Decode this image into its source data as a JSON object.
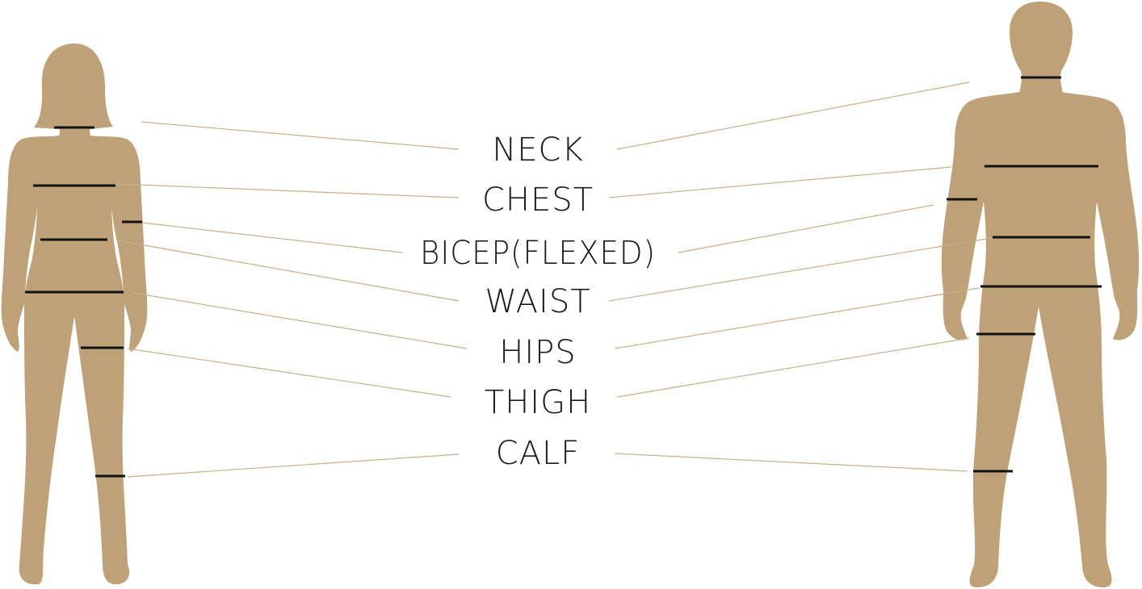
{
  "colors": {
    "body": "#BFA177",
    "measure_mark": "#111111",
    "leader_line": "#C9AE86",
    "text": "#1a1a1a"
  },
  "labels": {
    "neck": "NECK",
    "chest": "CHEST",
    "bicep": "BICEP(FLEXED)",
    "waist": "WAIST",
    "hips": "HIPS",
    "thigh": "THIGH",
    "calf": "CALF"
  }
}
